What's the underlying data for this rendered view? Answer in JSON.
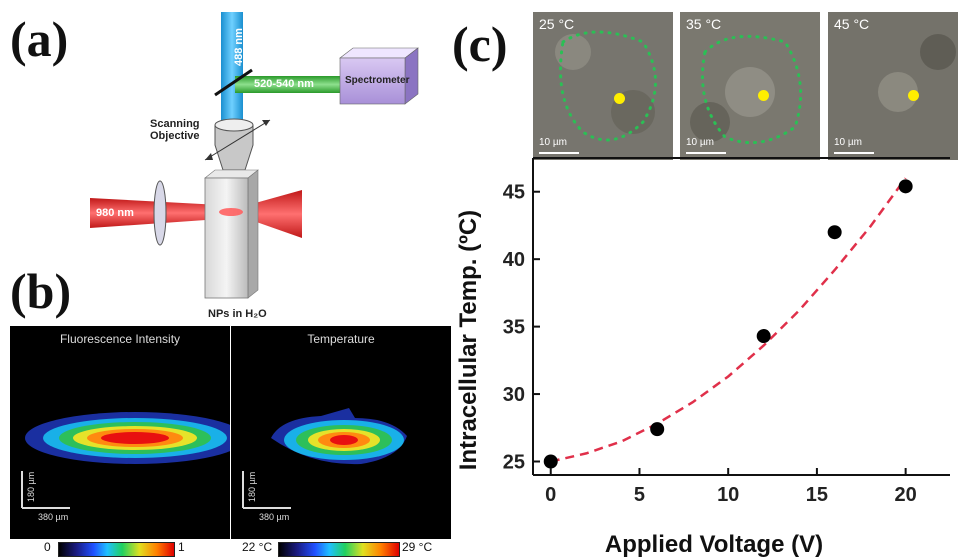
{
  "panel_labels": {
    "a": "(a)",
    "b": "(b)",
    "c": "(c)"
  },
  "panel_a": {
    "beam_488": "488 nm",
    "beam_520": "520-540 nm",
    "spectrometer": "Spectrometer",
    "objective_line1": "Scanning",
    "objective_line2": "Objective",
    "beam_980": "980 nm",
    "sample": "NPs in H₂O"
  },
  "panel_b": {
    "left_title": "Fluorescence Intensity",
    "right_title": "Temperature",
    "scale_y": "180 µm",
    "scale_x": "380 µm",
    "cbar_left_min": "0",
    "cbar_left_max": "1",
    "cbar_right_min": "22 °C",
    "cbar_right_max": "29 °C"
  },
  "panel_c": {
    "micrographs": [
      {
        "label": "25 °C",
        "scale": "10 µm"
      },
      {
        "label": "35 °C",
        "scale": "10 µm"
      },
      {
        "label": "45 °C",
        "scale": "10 µm"
      }
    ]
  },
  "chart_data": {
    "type": "scatter",
    "title": "",
    "xlabel": "Applied Voltage (V)",
    "ylabel": "Intracellular Temp. (ºC)",
    "xlim": [
      -1,
      22.5
    ],
    "ylim": [
      24,
      47.5
    ],
    "xticks": [
      0,
      5,
      10,
      15,
      20
    ],
    "yticks": [
      25,
      30,
      35,
      40,
      45
    ],
    "series": [
      {
        "values": [
          [
            0,
            25.0
          ],
          [
            6,
            27.4
          ],
          [
            12,
            34.3
          ],
          [
            16,
            42.0
          ],
          [
            20,
            45.4
          ]
        ]
      }
    ],
    "fit_curve": {
      "style": "dashed",
      "color": "#e0304a",
      "x": [
        0,
        2,
        4,
        6,
        8,
        10,
        12,
        14,
        16,
        18,
        20
      ],
      "y": [
        25.0,
        25.6,
        26.5,
        27.8,
        29.4,
        31.3,
        33.6,
        36.2,
        39.2,
        42.4,
        46.0
      ]
    },
    "marker_color": "#000000",
    "grid": false
  }
}
